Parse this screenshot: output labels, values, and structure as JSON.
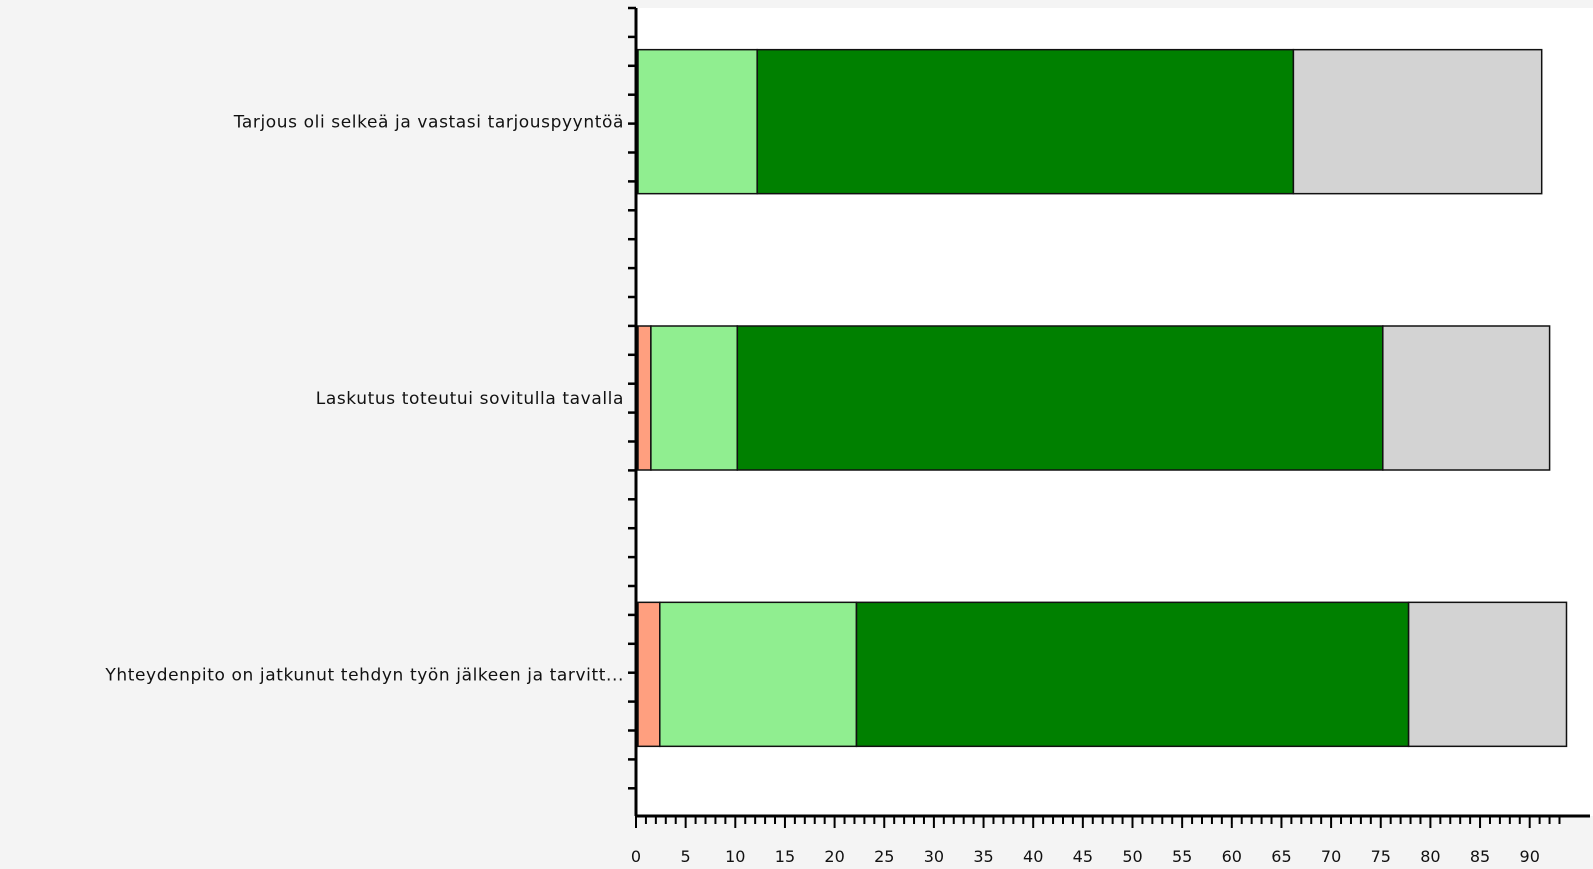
{
  "chart_data": {
    "type": "bar",
    "orientation": "horizontal",
    "stacked": true,
    "categories": [
      "Tarjous oli selkeä ja vastasi tarjouspyyntöä",
      "Laskutus toteutui sovitulla tavalla",
      "Yhteydenpito on jatkunut tehdyn työn jälkeen ja tarvitt..."
    ],
    "series": [
      {
        "color": "#ff9f7f",
        "values": [
          0,
          1.3,
          2.2
        ]
      },
      {
        "color": "#90ee90",
        "values": [
          12,
          8.7,
          19.8
        ]
      },
      {
        "color": "#008000",
        "values": [
          54,
          65,
          55.6
        ]
      },
      {
        "color": "#d3d3d3",
        "values": [
          25,
          16.8,
          15.9
        ]
      }
    ],
    "xlim": [
      0,
      93
    ],
    "xticks": [
      0,
      5,
      10,
      15,
      20,
      25,
      30,
      35,
      40,
      45,
      50,
      55,
      60,
      65,
      70,
      75,
      80,
      85,
      90
    ],
    "grid": false,
    "legend": "none",
    "plot_background": "#ffffff",
    "page_background": "#f4f4f4"
  }
}
